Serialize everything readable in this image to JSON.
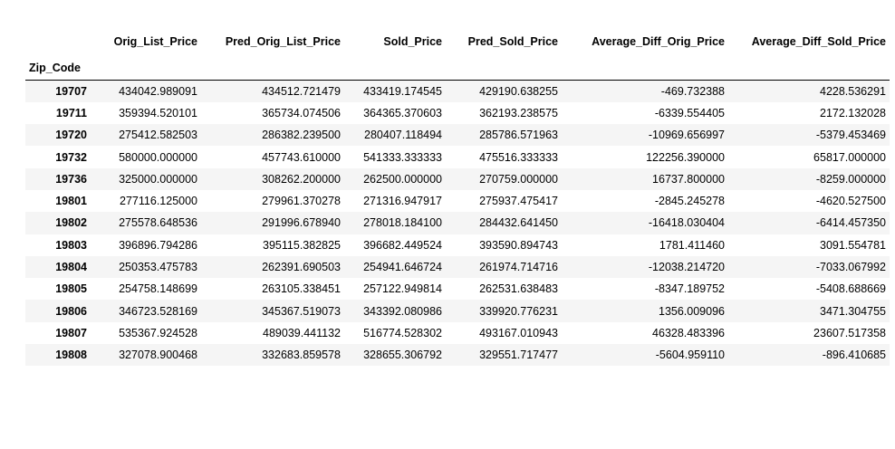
{
  "table": {
    "index_name": "Zip_Code",
    "columns": [
      "Orig_List_Price",
      "Pred_Orig_List_Price",
      "Sold_Price",
      "Pred_Sold_Price",
      "Average_Diff_Orig_Price",
      "Average_Diff_Sold_Price"
    ],
    "rows": [
      {
        "index": "19707",
        "cells": [
          "434042.989091",
          "434512.721479",
          "433419.174545",
          "429190.638255",
          "-469.732388",
          "4228.536291"
        ]
      },
      {
        "index": "19711",
        "cells": [
          "359394.520101",
          "365734.074506",
          "364365.370603",
          "362193.238575",
          "-6339.554405",
          "2172.132028"
        ]
      },
      {
        "index": "19720",
        "cells": [
          "275412.582503",
          "286382.239500",
          "280407.118494",
          "285786.571963",
          "-10969.656997",
          "-5379.453469"
        ]
      },
      {
        "index": "19732",
        "cells": [
          "580000.000000",
          "457743.610000",
          "541333.333333",
          "475516.333333",
          "122256.390000",
          "65817.000000"
        ]
      },
      {
        "index": "19736",
        "cells": [
          "325000.000000",
          "308262.200000",
          "262500.000000",
          "270759.000000",
          "16737.800000",
          "-8259.000000"
        ]
      },
      {
        "index": "19801",
        "cells": [
          "277116.125000",
          "279961.370278",
          "271316.947917",
          "275937.475417",
          "-2845.245278",
          "-4620.527500"
        ]
      },
      {
        "index": "19802",
        "cells": [
          "275578.648536",
          "291996.678940",
          "278018.184100",
          "284432.641450",
          "-16418.030404",
          "-6414.457350"
        ]
      },
      {
        "index": "19803",
        "cells": [
          "396896.794286",
          "395115.382825",
          "396682.449524",
          "393590.894743",
          "1781.411460",
          "3091.554781"
        ]
      },
      {
        "index": "19804",
        "cells": [
          "250353.475783",
          "262391.690503",
          "254941.646724",
          "261974.714716",
          "-12038.214720",
          "-7033.067992"
        ]
      },
      {
        "index": "19805",
        "cells": [
          "254758.148699",
          "263105.338451",
          "257122.949814",
          "262531.638483",
          "-8347.189752",
          "-5408.688669"
        ]
      },
      {
        "index": "19806",
        "cells": [
          "346723.528169",
          "345367.519073",
          "343392.080986",
          "339920.776231",
          "1356.009096",
          "3471.304755"
        ]
      },
      {
        "index": "19807",
        "cells": [
          "535367.924528",
          "489039.441132",
          "516774.528302",
          "493167.010943",
          "46328.483396",
          "23607.517358"
        ]
      },
      {
        "index": "19808",
        "cells": [
          "327078.900468",
          "332683.859578",
          "328655.306792",
          "329551.717477",
          "-5604.959110",
          "-896.410685"
        ]
      }
    ]
  }
}
